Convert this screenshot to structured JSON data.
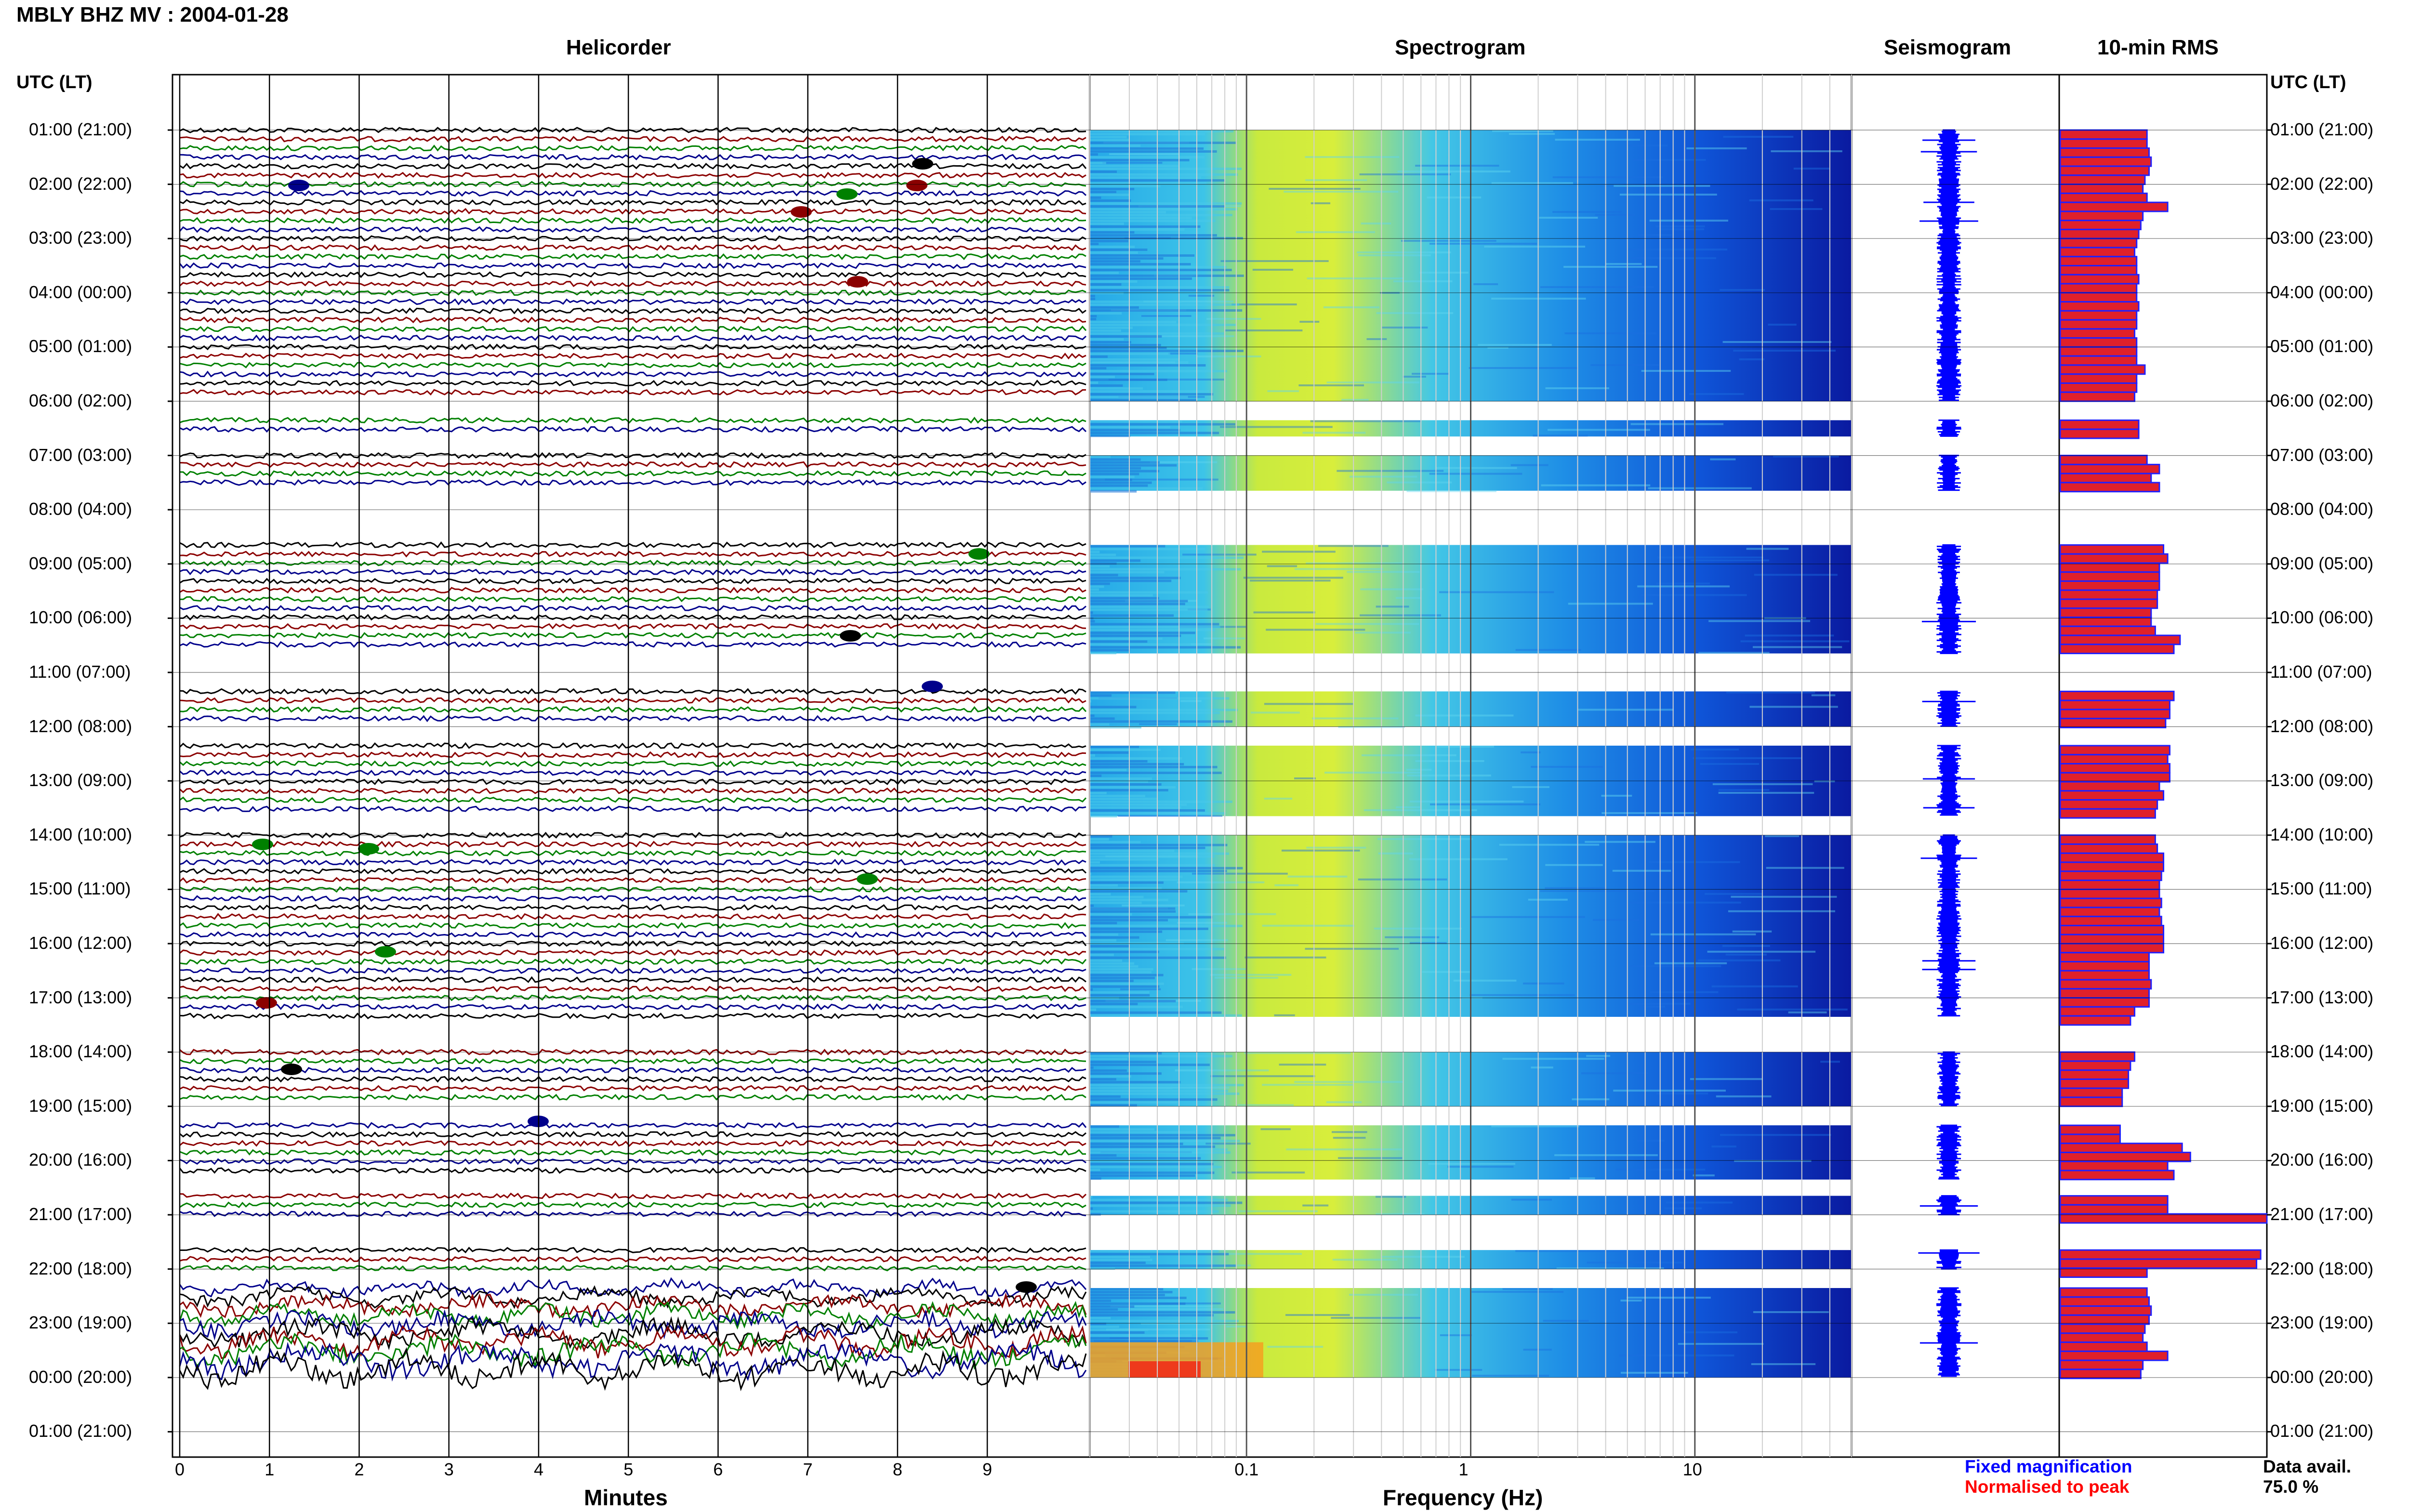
{
  "title": "MBLY BHZ MV : 2004-01-28",
  "panels": {
    "helicorder": "Helicorder",
    "spectrogram": "Spectrogram",
    "seismogram": "Seismogram",
    "rms": "10-min RMS"
  },
  "time_axis_label": "UTC (LT)",
  "time_labels": [
    "01:00 (21:00)",
    "02:00 (22:00)",
    "03:00 (23:00)",
    "04:00 (00:00)",
    "05:00 (01:00)",
    "06:00 (02:00)",
    "07:00 (03:00)",
    "08:00 (04:00)",
    "09:00 (05:00)",
    "10:00 (06:00)",
    "11:00 (07:00)",
    "12:00 (08:00)",
    "13:00 (09:00)",
    "14:00 (10:00)",
    "15:00 (11:00)",
    "16:00 (12:00)",
    "17:00 (13:00)",
    "18:00 (14:00)",
    "19:00 (15:00)",
    "20:00 (16:00)",
    "21:00 (17:00)",
    "22:00 (18:00)",
    "23:00 (19:00)",
    "00:00 (20:00)",
    "01:00 (21:00)"
  ],
  "helicorder_x": {
    "label": "Minutes",
    "ticks": [
      "0",
      "1",
      "2",
      "3",
      "4",
      "5",
      "6",
      "7",
      "8",
      "9"
    ]
  },
  "spectrogram_x": {
    "label": "Frequency (Hz)",
    "ticks": [
      "0.1",
      "1",
      "10"
    ]
  },
  "legend": {
    "fixed": "Fixed magnification",
    "normalised": "Normalised to peak",
    "fixed_color": "#0000ff",
    "normalised_color": "#ff0000"
  },
  "data_avail": {
    "label": "Data avail.",
    "value": "75.0 %"
  },
  "colors": {
    "trace_cycle": [
      "#000000",
      "#8b0000",
      "#008000",
      "#00008b"
    ],
    "rms_fill": "#e0202a",
    "rms_edge": "#2020ff"
  },
  "chart_data": {
    "type": "heatmap",
    "title": "MBLY BHZ MV : 2004-01-28",
    "xlabel_helicorder": "Minutes",
    "xlabel_spectrogram": "Frequency (Hz)",
    "spectrogram_freq_range_hz": [
      0.02,
      50
    ],
    "spectrogram_scale": "log",
    "hours": [
      1,
      2,
      3,
      4,
      5,
      6,
      7,
      8,
      9,
      10,
      11,
      12,
      13,
      14,
      15,
      16,
      17,
      18,
      19,
      20,
      21,
      22,
      23,
      24
    ],
    "segments_start_to_end_hours": [
      [
        1,
        6
      ],
      [
        6.35,
        6.65
      ],
      [
        7,
        7.65
      ],
      [
        8.65,
        10.65
      ],
      [
        11.35,
        12
      ],
      [
        12.35,
        13.65
      ],
      [
        14,
        17.35
      ],
      [
        18,
        19
      ],
      [
        19.35,
        20.35
      ],
      [
        20.65,
        21
      ],
      [
        21.65,
        22
      ],
      [
        22.35,
        24
      ]
    ],
    "rms_10min": {
      "unit": "relative",
      "values": [
        0.42,
        0.42,
        0.43,
        0.44,
        0.43,
        0.41,
        0.4,
        0.42,
        0.52,
        0.4,
        0.39,
        0.38,
        0.37,
        0.36,
        0.37,
        0.37,
        0.38,
        0.37,
        0.37,
        0.38,
        0.37,
        0.37,
        0.36,
        0.37,
        0.37,
        0.37,
        0.41,
        0.37,
        0.37,
        0.36,
        0.38,
        0.38,
        0.42,
        0.48,
        0.44,
        0.48,
        0.5,
        0.52,
        0.48,
        0.48,
        0.48,
        0.47,
        0.47,
        0.44,
        0.44,
        0.46,
        0.58,
        0.55,
        0.55,
        0.53,
        0.53,
        0.51,
        0.53,
        0.52,
        0.53,
        0.53,
        0.48,
        0.5,
        0.47,
        0.46,
        0.46,
        0.47,
        0.5,
        0.5,
        0.49,
        0.48,
        0.48,
        0.49,
        0.48,
        0.49,
        0.5,
        0.5,
        0.5,
        0.43,
        0.43,
        0.43,
        0.44,
        0.43,
        0.43,
        0.36,
        0.34,
        0.36,
        0.34,
        0.33,
        0.33,
        0.3,
        0.3,
        0.29,
        0.29,
        0.59,
        0.63,
        0.52,
        0.55,
        0.52,
        0.52,
        1.0,
        0.97,
        0.95
      ]
    },
    "data_availability_percent": 75.0
  }
}
